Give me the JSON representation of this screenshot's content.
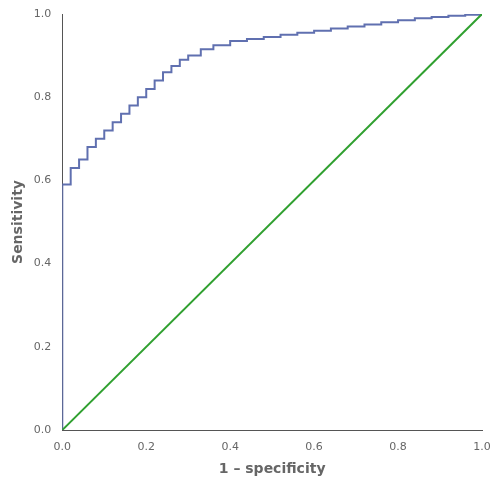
{
  "chart_data": {
    "type": "line",
    "xlabel": "1 – specificity",
    "ylabel": "Sensitivity",
    "series": [
      {
        "x": [
          0,
          1
        ],
        "values": [
          0,
          1
        ],
        "color": "#30a030"
      },
      {
        "x": [
          0.0,
          0.0,
          0.0,
          0.0,
          0.02,
          0.02,
          0.04,
          0.04,
          0.06,
          0.06,
          0.08,
          0.08,
          0.1,
          0.1,
          0.12,
          0.12,
          0.14,
          0.14,
          0.16,
          0.16,
          0.18,
          0.18,
          0.2,
          0.2,
          0.22,
          0.22,
          0.24,
          0.24,
          0.26,
          0.26,
          0.28,
          0.28,
          0.3,
          0.3,
          0.33,
          0.33,
          0.36,
          0.36,
          0.4,
          0.4,
          0.44,
          0.44,
          0.48,
          0.48,
          0.52,
          0.52,
          0.56,
          0.56,
          0.6,
          0.6,
          0.64,
          0.64,
          0.68,
          0.68,
          0.72,
          0.72,
          0.76,
          0.76,
          0.8,
          0.8,
          0.84,
          0.84,
          0.88,
          0.88,
          0.92,
          0.92,
          0.96,
          0.96,
          1.0,
          1.0
        ],
        "values": [
          0.0,
          0.24,
          0.35,
          0.59,
          0.59,
          0.63,
          0.63,
          0.65,
          0.65,
          0.68,
          0.68,
          0.7,
          0.7,
          0.72,
          0.72,
          0.74,
          0.74,
          0.76,
          0.76,
          0.78,
          0.78,
          0.8,
          0.8,
          0.82,
          0.82,
          0.84,
          0.84,
          0.86,
          0.86,
          0.875,
          0.875,
          0.89,
          0.89,
          0.9,
          0.9,
          0.915,
          0.915,
          0.925,
          0.925,
          0.935,
          0.935,
          0.94,
          0.94,
          0.945,
          0.945,
          0.95,
          0.95,
          0.955,
          0.955,
          0.96,
          0.96,
          0.965,
          0.965,
          0.97,
          0.97,
          0.975,
          0.975,
          0.98,
          0.98,
          0.985,
          0.985,
          0.99,
          0.99,
          0.993,
          0.993,
          0.996,
          0.996,
          0.998,
          0.998,
          1.0
        ],
        "color": "#6070b0"
      }
    ],
    "xlim": [
      0.0,
      1.0
    ],
    "ylim": [
      0.0,
      1.0
    ],
    "xticks": [
      {
        "value": 0.0,
        "label": "0.0"
      },
      0.2,
      0.4,
      0.6,
      0.8,
      {
        "value": 1.0,
        "label": "1.0"
      }
    ],
    "yticks": [
      {
        "value": 0.0,
        "label": "0.0"
      },
      0.2,
      0.4,
      0.6,
      0.8,
      {
        "value": 1.0,
        "label": "1.0"
      }
    ],
    "grid": false
  }
}
